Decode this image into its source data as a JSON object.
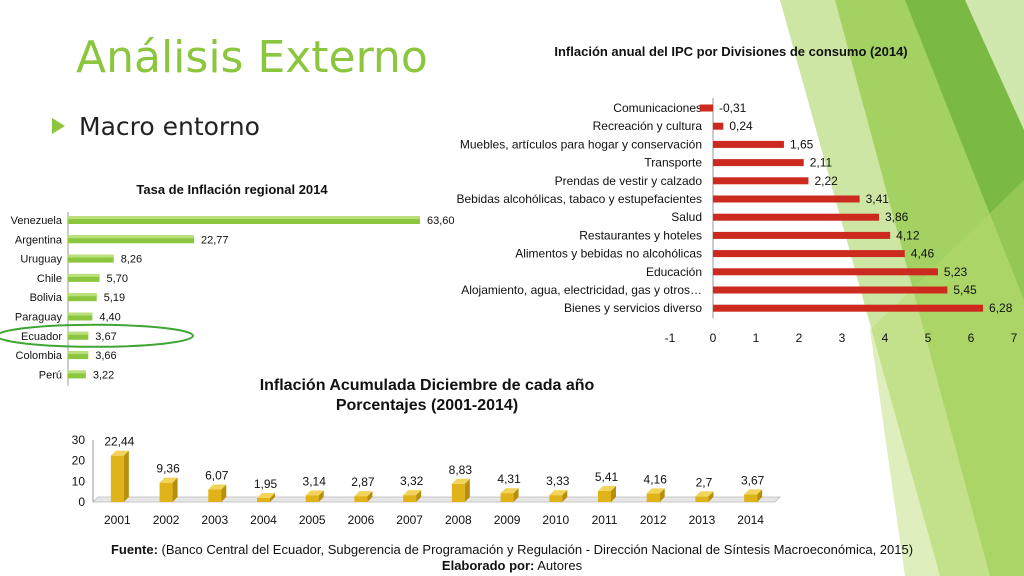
{
  "slide": {
    "title": "Análisis Externo",
    "bullet": "Macro entorno",
    "source_label": "Fuente:",
    "source_text": "(Banco Central del Ecuador, Subgerencia de Programación y Regulación - Dirección Nacional de Síntesis Macroeconómica, 2015)",
    "author_label": "Elaborado por:",
    "author_text": "Autores"
  },
  "colors": {
    "accent": "#8cc63f",
    "bar_green": "#8cc63f",
    "bar_red": "#cc2a1e",
    "bar_gold": "#e0b418",
    "highlight": "#3fa535"
  },
  "chart_data": [
    {
      "type": "bar",
      "orientation": "horizontal",
      "title": "Tasa de Inflación regional 2014",
      "categories": [
        "Venezuela",
        "Argentina",
        "Uruguay",
        "Chile",
        "Bolivia",
        "Paraguay",
        "Ecuador",
        "Colombia",
        "Perú"
      ],
      "values": [
        63.6,
        22.77,
        8.26,
        5.7,
        5.19,
        4.4,
        3.67,
        3.66,
        3.22
      ],
      "labels": [
        "63,60",
        "22,77",
        "8,26",
        "5,70",
        "5,19",
        "4,40",
        "3,67",
        "3,66",
        "3,22"
      ],
      "highlight": "Ecuador",
      "xlim": [
        0,
        63.6
      ]
    },
    {
      "type": "bar",
      "orientation": "horizontal",
      "title": "Inflación anual del IPC por Divisiones de consumo (2014)",
      "categories": [
        "Comunicaciones",
        "Recreación y cultura",
        "Muebles, artículos para hogar y conservación",
        "Transporte",
        "Prendas de vestir y calzado",
        "Bebidas alcohólicas, tabaco y estupefacientes",
        "Salud",
        "Restaurantes y hoteles",
        "Alimentos y bebidas no alcohólicas",
        "Educación",
        "Alojamiento, agua, electricidad, gas y otros…",
        "Bienes y servicios diverso"
      ],
      "values": [
        -0.31,
        0.24,
        1.65,
        2.11,
        2.22,
        3.41,
        3.86,
        4.12,
        4.46,
        5.23,
        5.45,
        6.28
      ],
      "labels": [
        "-0,31",
        "0,24",
        "1,65",
        "2,11",
        "2,22",
        "3,41",
        "3,86",
        "4,12",
        "4,46",
        "5,23",
        "5,45",
        "6,28"
      ],
      "xlim": [
        -1,
        7
      ],
      "xticks": [
        "-1",
        "0",
        "1",
        "2",
        "3",
        "4",
        "5",
        "6",
        "7"
      ]
    },
    {
      "type": "bar",
      "style": "3d-column",
      "title": "Inflación Acumulada Diciembre de cada año",
      "subtitle": "Porcentajes (2001-2014)",
      "categories": [
        "2001",
        "2002",
        "2003",
        "2004",
        "2005",
        "2006",
        "2007",
        "2008",
        "2009",
        "2010",
        "2011",
        "2012",
        "2013",
        "2014"
      ],
      "values": [
        22.44,
        9.36,
        6.07,
        1.95,
        3.14,
        2.87,
        3.32,
        8.83,
        4.31,
        3.33,
        5.41,
        4.16,
        2.7,
        3.67
      ],
      "labels": [
        "22,44",
        "9,36",
        "6,07",
        "1,95",
        "3,14",
        "2,87",
        "3,32",
        "8,83",
        "4,31",
        "3,33",
        "5,41",
        "4,16",
        "2,7",
        "3,67"
      ],
      "ylim": [
        0,
        30
      ],
      "yticks": [
        "0",
        "10",
        "20",
        "30"
      ]
    }
  ]
}
